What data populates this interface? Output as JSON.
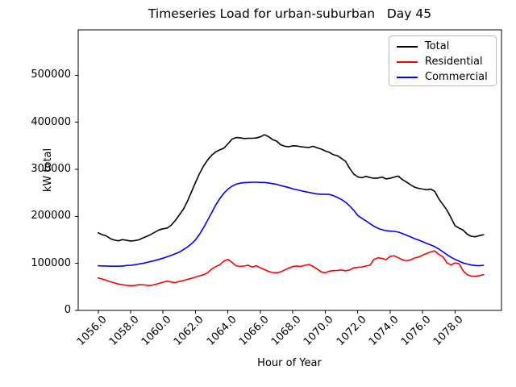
{
  "chart_data": {
    "type": "line",
    "title": "Timeseries Load for urban-suburban   Day 45",
    "xlabel": "Hour of Year",
    "ylabel": "kW total",
    "grid": false,
    "legend_position": "upper right",
    "x_start": 1056.0,
    "x_step": 0.25,
    "xlim": [
      1054.77,
      1080.86
    ],
    "ylim": [
      0,
      596500
    ],
    "xticks": {
      "values": [
        1056,
        1058,
        1060,
        1062,
        1064,
        1066,
        1068,
        1070,
        1072,
        1074,
        1076,
        1078
      ],
      "labels": [
        "1056.0",
        "1058.0",
        "1060.0",
        "1062.0",
        "1064.0",
        "1066.0",
        "1068.0",
        "1070.0",
        "1072.0",
        "1074.0",
        "1076.0",
        "1078.0"
      ]
    },
    "yticks": {
      "values": [
        0,
        100000,
        200000,
        300000,
        400000,
        500000
      ],
      "labels": [
        "0",
        "100000",
        "200000",
        "300000",
        "400000",
        "500000"
      ]
    },
    "series": [
      {
        "name": "Total",
        "color": "#000000",
        "values": [
          165000,
          161000,
          158500,
          152500,
          149500,
          148000,
          150500,
          149000,
          147500,
          148500,
          150000,
          154000,
          157500,
          161500,
          166500,
          171000,
          173500,
          175000,
          181000,
          191000,
          203000,
          215000,
          232000,
          252000,
          272000,
          291000,
          307000,
          320000,
          330000,
          337000,
          341500,
          345000,
          354000,
          364000,
          367500,
          367000,
          365500,
          366000,
          366000,
          366500,
          369000,
          373500,
          369500,
          363000,
          360000,
          352000,
          349000,
          348000,
          350000,
          349500,
          348000,
          347000,
          346500,
          349000,
          345500,
          343000,
          339000,
          336000,
          331000,
          329000,
          323000,
          317000,
          302000,
          290000,
          284000,
          282000,
          285000,
          282500,
          281000,
          281500,
          283500,
          279500,
          281000,
          283500,
          285500,
          278000,
          273000,
          267000,
          262000,
          259500,
          258000,
          256500,
          258000,
          253000,
          237000,
          225000,
          213000,
          197000,
          180000,
          175000,
          170500,
          162000,
          157500,
          156500,
          159000,
          161000
        ]
      },
      {
        "name": "Residential",
        "color": "#ff0000",
        "values": [
          69000,
          66500,
          64000,
          61000,
          58500,
          56000,
          54500,
          53500,
          52500,
          53000,
          54500,
          54500,
          53500,
          53000,
          55000,
          57500,
          60000,
          62000,
          60500,
          59000,
          61500,
          63500,
          66000,
          68000,
          71000,
          73500,
          76000,
          80000,
          88000,
          93000,
          97000,
          105000,
          108500,
          102000,
          95000,
          93500,
          94500,
          96000,
          92000,
          95000,
          90500,
          87000,
          83000,
          80500,
          80000,
          82000,
          86000,
          90000,
          93500,
          94500,
          93500,
          96000,
          97500,
          93500,
          88000,
          82000,
          80000,
          83500,
          84500,
          85000,
          86000,
          84000,
          86000,
          90500,
          91500,
          92000,
          94500,
          96000,
          108500,
          112000,
          110500,
          108000,
          115000,
          116000,
          112000,
          108000,
          105000,
          107500,
          111500,
          113500,
          117500,
          121000,
          124500,
          126500,
          119000,
          114000,
          101000,
          96500,
          101000,
          99000,
          84000,
          76000,
          73000,
          72500,
          74000,
          76000
        ]
      },
      {
        "name": "Commercial",
        "color": "#0000ff",
        "values": [
          95000,
          94500,
          94500,
          94000,
          94000,
          94000,
          94500,
          95500,
          96000,
          97000,
          98500,
          100000,
          102000,
          104000,
          106000,
          108500,
          111000,
          114000,
          117000,
          120500,
          124000,
          129000,
          134500,
          141500,
          150000,
          162000,
          176000,
          192000,
          208000,
          224000,
          238000,
          249000,
          258000,
          264000,
          268500,
          270500,
          271500,
          272000,
          272500,
          272500,
          272000,
          272000,
          271000,
          269500,
          268000,
          265500,
          263500,
          261000,
          258500,
          256500,
          254500,
          252500,
          251000,
          249000,
          247500,
          247000,
          247000,
          246500,
          244000,
          240000,
          235500,
          230000,
          222000,
          213000,
          202000,
          196000,
          190500,
          184500,
          179000,
          174500,
          171500,
          169500,
          168500,
          168000,
          166500,
          163500,
          160000,
          156500,
          152500,
          149500,
          146000,
          142500,
          139000,
          135500,
          130500,
          124500,
          118500,
          113000,
          108500,
          104500,
          101000,
          98500,
          96500,
          95500,
          95000,
          96000
        ]
      }
    ]
  }
}
